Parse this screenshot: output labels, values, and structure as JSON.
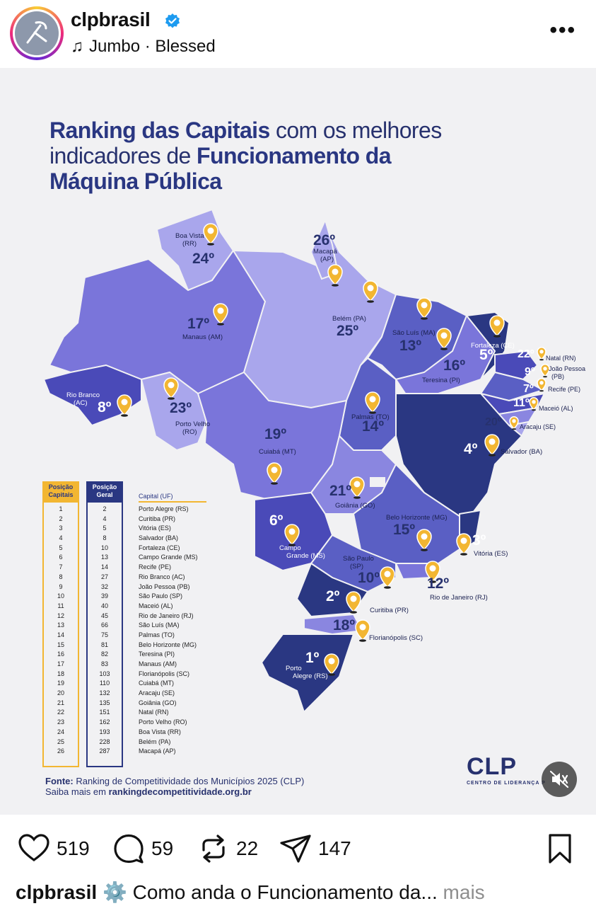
{
  "header": {
    "username": "clpbrasil",
    "music": "Jumbo · Blessed",
    "more_label": "•••"
  },
  "post": {
    "title": {
      "part1": "Ranking das Capitais",
      "part2": " com os melhores",
      "part3": "indicadores de ",
      "part4": "Funcionamento da",
      "part5": "Máquina Pública"
    },
    "capitals": [
      {
        "id": "boa-vista",
        "rank": "24º",
        "name": "Boa Vista",
        "uf": "(RR)"
      },
      {
        "id": "macapa",
        "rank": "26º",
        "name": "Macapá",
        "uf": "(AP)"
      },
      {
        "id": "manaus",
        "rank": "17º",
        "name": "Manaus (AM)",
        "uf": ""
      },
      {
        "id": "belem",
        "rank": "25º",
        "name": "Belém (PA)",
        "uf": ""
      },
      {
        "id": "sao-luis",
        "rank": "13º",
        "name": "São Luís (MA)",
        "uf": ""
      },
      {
        "id": "fortaleza",
        "rank": "5º",
        "name": "Fortaleza (CE)",
        "uf": ""
      },
      {
        "id": "natal",
        "rank": "22º",
        "name": "Natal (RN)",
        "uf": ""
      },
      {
        "id": "joao-pessoa",
        "rank": "9º",
        "name": "João Pessoa",
        "uf": "(PB)"
      },
      {
        "id": "recife",
        "rank": "7º",
        "name": "Recife (PE)",
        "uf": ""
      },
      {
        "id": "maceio",
        "rank": "11º",
        "name": "Maceió (AL)",
        "uf": ""
      },
      {
        "id": "aracaju",
        "rank": "20º",
        "name": "Aracaju (SE)",
        "uf": ""
      },
      {
        "id": "teresina",
        "rank": "16º",
        "name": "Teresina (PI)",
        "uf": ""
      },
      {
        "id": "rio-branco",
        "rank": "8º",
        "name": "Rio Branco",
        "uf": "(AC)"
      },
      {
        "id": "porto-velho",
        "rank": "23º",
        "name": "Porto Velho",
        "uf": "(RO)"
      },
      {
        "id": "palmas",
        "rank": "14º",
        "name": "Palmas (TO)",
        "uf": ""
      },
      {
        "id": "salvador",
        "rank": "4º",
        "name": "Salvador (BA)",
        "uf": ""
      },
      {
        "id": "cuiaba",
        "rank": "19º",
        "name": "Cuiabá (MT)",
        "uf": ""
      },
      {
        "id": "goiania",
        "rank": "21º",
        "name": "Goiânia (GO)",
        "uf": ""
      },
      {
        "id": "campo-grande",
        "rank": "6º",
        "name": "Campo",
        "uf": "Grande (MS)"
      },
      {
        "id": "belo-horizonte",
        "rank": "15º",
        "name": "Belo Horizonte (MG)",
        "uf": ""
      },
      {
        "id": "vitoria",
        "rank": "3º",
        "name": "Vitória (ES)",
        "uf": ""
      },
      {
        "id": "sao-paulo",
        "rank": "10º",
        "name": "São Paulo",
        "uf": "(SP)"
      },
      {
        "id": "rio-de-janeiro",
        "rank": "12º",
        "name": "Rio de Janeiro (RJ)",
        "uf": ""
      },
      {
        "id": "curitiba",
        "rank": "2º",
        "name": "Curitiba (PR)",
        "uf": ""
      },
      {
        "id": "florianopolis",
        "rank": "18º",
        "name": "Florianópolis (SC)",
        "uf": ""
      },
      {
        "id": "porto-alegre",
        "rank": "1º",
        "name": "Porto",
        "uf": "Alegre (RS)"
      }
    ],
    "table": {
      "header_capitais": "Posição Capitais",
      "header_geral": "Posição Geral",
      "header_capital": "Capital (UF)",
      "rows": [
        {
          "pos": "1",
          "geral": "2",
          "capital": "Porto Alegre (RS)"
        },
        {
          "pos": "2",
          "geral": "4",
          "capital": "Curitiba (PR)"
        },
        {
          "pos": "3",
          "geral": "5",
          "capital": "Vitória (ES)"
        },
        {
          "pos": "4",
          "geral": "8",
          "capital": "Salvador (BA)"
        },
        {
          "pos": "5",
          "geral": "10",
          "capital": "Fortaleza (CE)"
        },
        {
          "pos": "6",
          "geral": "13",
          "capital": "Campo Grande (MS)"
        },
        {
          "pos": "7",
          "geral": "14",
          "capital": "Recife (PE)"
        },
        {
          "pos": "8",
          "geral": "27",
          "capital": "Rio Branco (AC)"
        },
        {
          "pos": "9",
          "geral": "32",
          "capital": "João Pessoa (PB)"
        },
        {
          "pos": "10",
          "geral": "39",
          "capital": "São Paulo (SP)"
        },
        {
          "pos": "11",
          "geral": "40",
          "capital": "Maceió (AL)"
        },
        {
          "pos": "12",
          "geral": "45",
          "capital": "Rio de Janeiro (RJ)"
        },
        {
          "pos": "13",
          "geral": "66",
          "capital": "São Luís (MA)"
        },
        {
          "pos": "14",
          "geral": "75",
          "capital": "Palmas (TO)"
        },
        {
          "pos": "15",
          "geral": "81",
          "capital": "Belo Horizonte (MG)"
        },
        {
          "pos": "16",
          "geral": "82",
          "capital": "Teresina (PI)"
        },
        {
          "pos": "17",
          "geral": "83",
          "capital": "Manaus (AM)"
        },
        {
          "pos": "18",
          "geral": "103",
          "capital": "Florianópolis (SC)"
        },
        {
          "pos": "19",
          "geral": "110",
          "capital": "Cuiabá (MT)"
        },
        {
          "pos": "20",
          "geral": "132",
          "capital": "Aracaju (SE)"
        },
        {
          "pos": "21",
          "geral": "135",
          "capital": "Goiânia (GO)"
        },
        {
          "pos": "22",
          "geral": "151",
          "capital": "Natal (RN)"
        },
        {
          "pos": "23",
          "geral": "162",
          "capital": "Porto Velho (RO)"
        },
        {
          "pos": "24",
          "geral": "193",
          "capital": "Boa Vista (RR)"
        },
        {
          "pos": "25",
          "geral": "228",
          "capital": "Belém (PA)"
        },
        {
          "pos": "26",
          "geral": "287",
          "capital": "Macapá (AP)"
        }
      ]
    },
    "source": {
      "label": "Fonte:",
      "text": " Ranking de Competitividade dos Municípios 2025 (CLP)",
      "more": "Saiba mais em ",
      "url": "rankingdecompetitividade.org.br"
    },
    "logo": {
      "text": "CLP",
      "sub": "CENTRO DE LIDERANÇA P"
    }
  },
  "actions": {
    "likes": "519",
    "comments": "59",
    "reposts": "22",
    "shares": "147"
  },
  "caption": {
    "username": "clpbrasil",
    "text": " Como anda o Funcionamento da...",
    "more": " mais"
  },
  "colors": {
    "title": "#27316e",
    "dark": "#2a3782",
    "mid": "#5a5fc4",
    "light": "#8a86e0",
    "pale": "#a9a6ec",
    "pin": "#f2b632"
  }
}
